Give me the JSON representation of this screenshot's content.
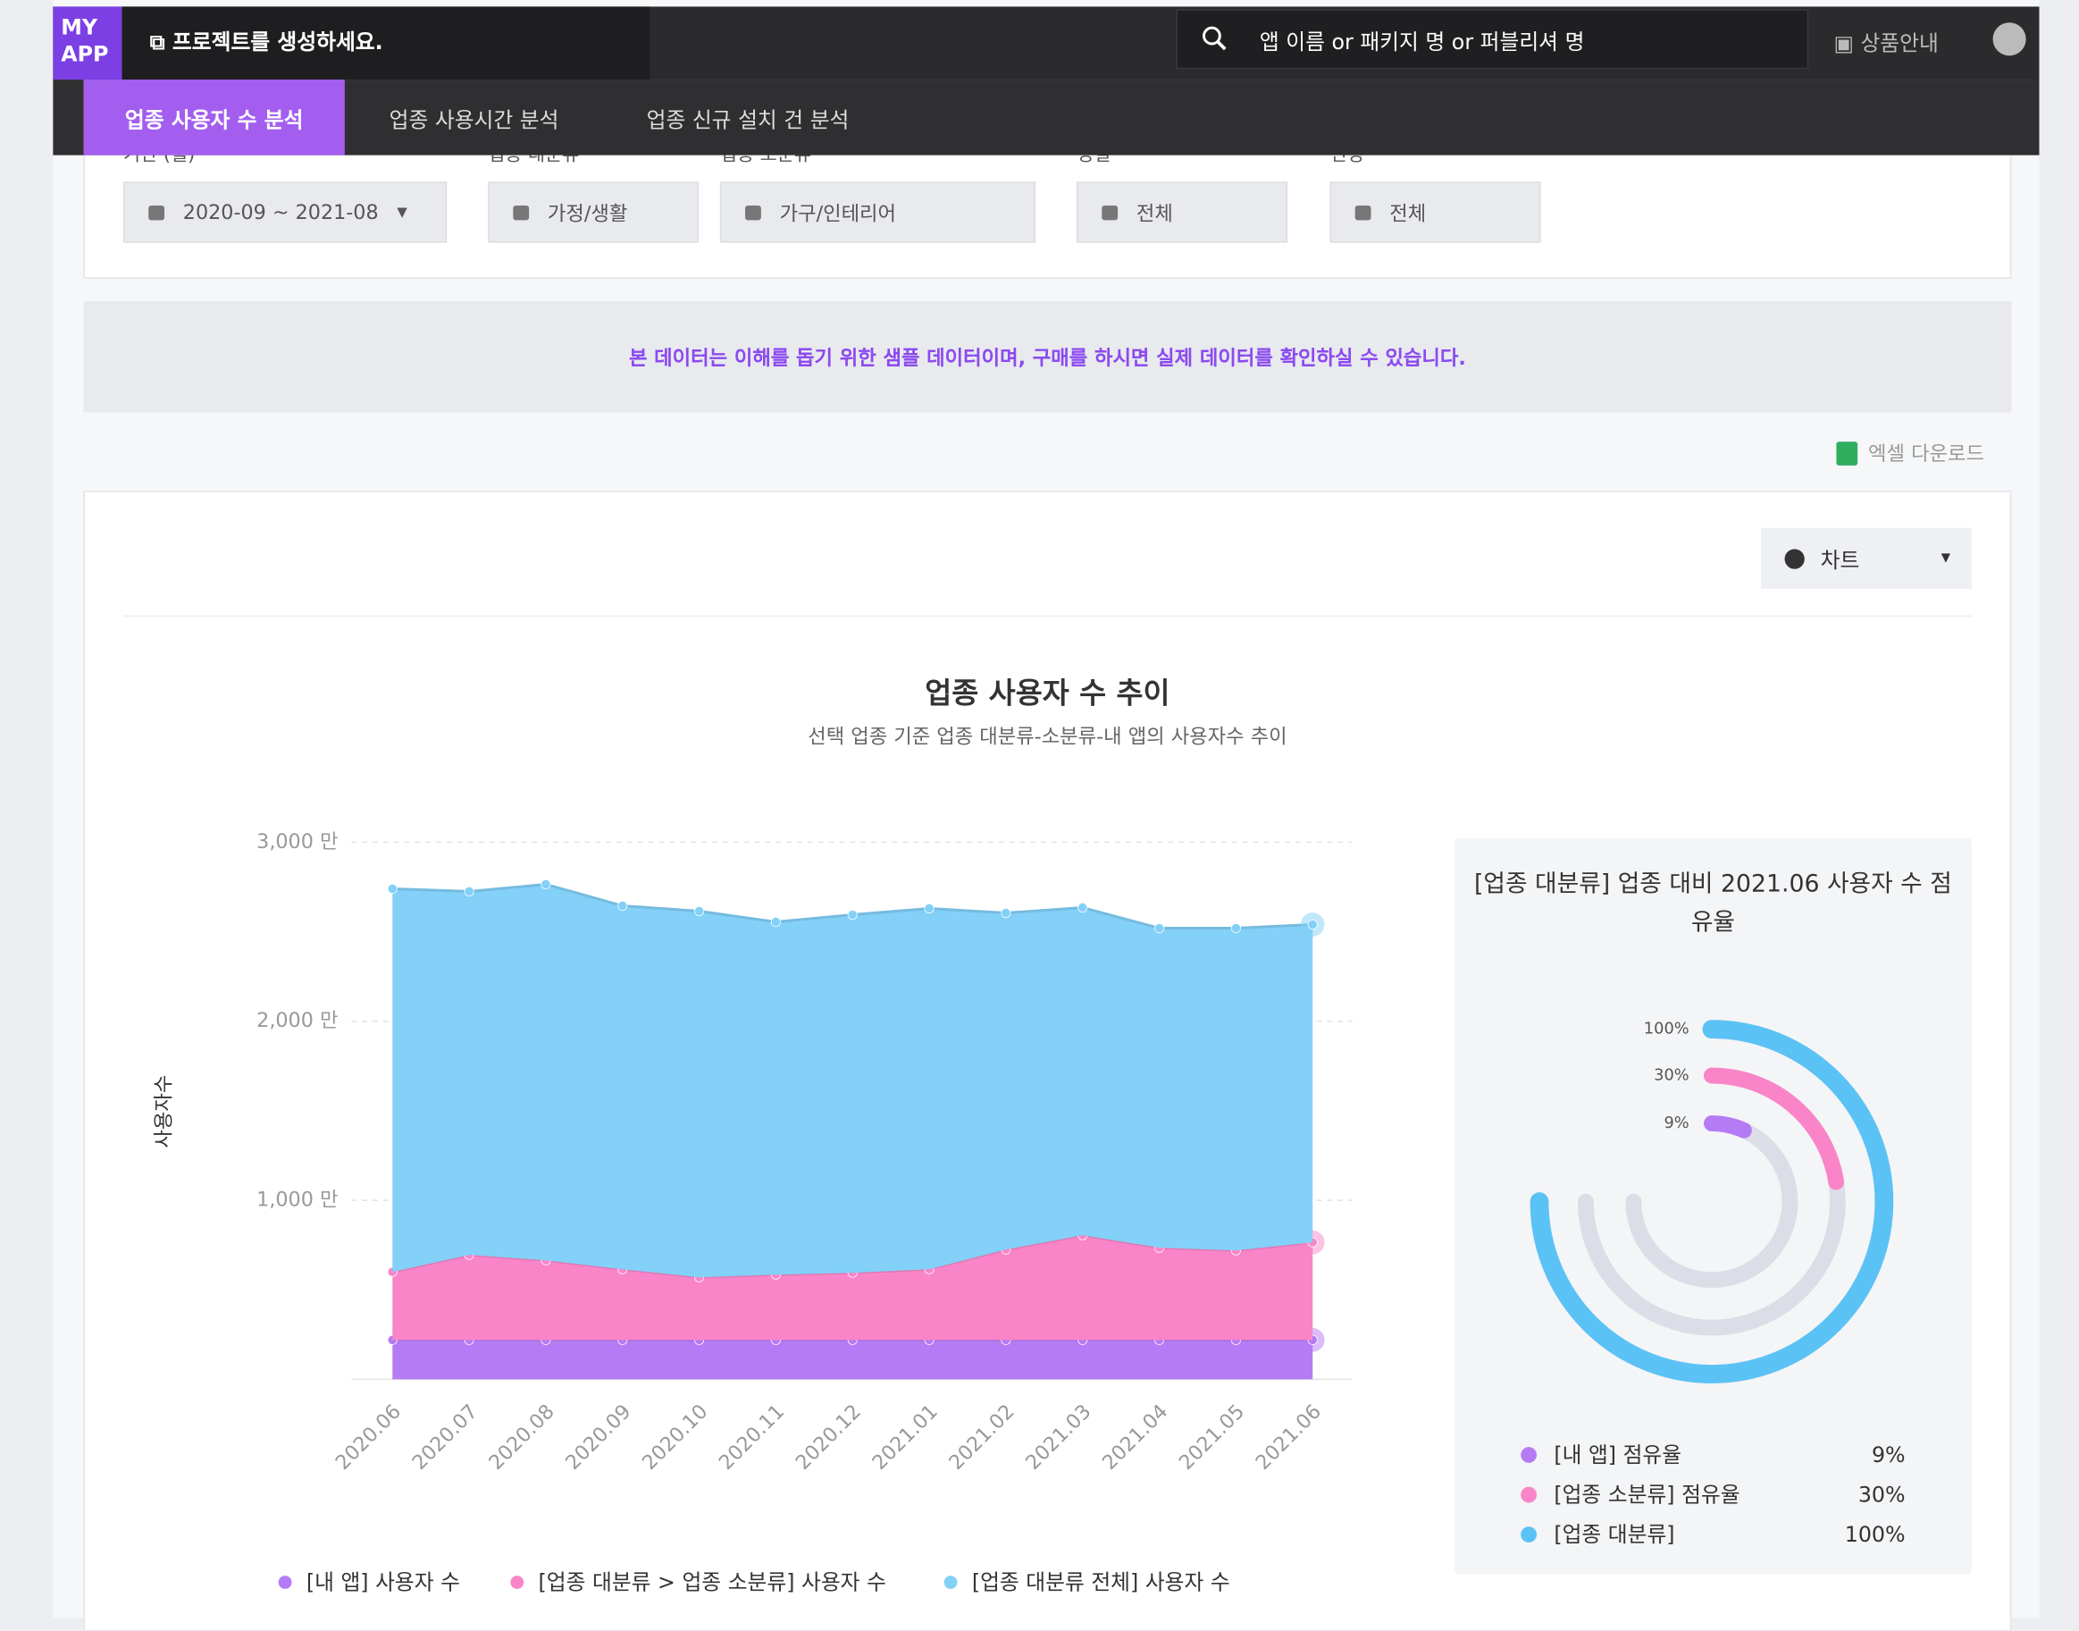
{
  "header": {
    "logo": [
      "MY",
      "APP"
    ],
    "project": "프로젝트를 생성하세요.",
    "search_placeholder": "앱 이름 or 패키지 명 or 퍼블리셔 명",
    "product_info": "상품안내"
  },
  "tabs": [
    "업종 사용자 수 분석",
    "업종 사용시간 분석",
    "업종 신규 설치 건 분석"
  ],
  "filters": [
    {
      "label": "기간 (월)",
      "value": "2020-09 ~ 2021-08"
    },
    {
      "label": "업종 대분류",
      "value": "가정/생활"
    },
    {
      "label": "업종 소분류",
      "value": "가구/인테리어"
    },
    {
      "label": "성별",
      "value": "전체"
    },
    {
      "label": "연령",
      "value": "전체"
    }
  ],
  "notice": "본 데이터는 이해를 돕기 위한 샘플 데이터이며, 구매를 하시면 실제 데이터를 확인하실 수 있습니다.",
  "download": "엑셀 다운로드",
  "view_select": "차트",
  "chart_data": [
    {
      "type": "stacked_area",
      "title": "업종 사용자 수 추이",
      "subtitle": "선택 업종 기준 업종 대분류-소분류-내 앱의 사용자수 추이",
      "y_label": "사용자수",
      "categories": [
        "2020.06",
        "2020.07",
        "2020.08",
        "2020.09",
        "2020.10",
        "2020.11",
        "2020.12",
        "2021.01",
        "2021.02",
        "2021.03",
        "2021.04",
        "2021.05",
        "2021.06"
      ],
      "series": [
        {
          "name": "[내 앱] 사용자 수",
          "color": "#b57bf5",
          "values": [
            220,
            220,
            220,
            220,
            220,
            220,
            220,
            220,
            220,
            220,
            220,
            220,
            220
          ]
        },
        {
          "name": "[업종 대분류 > 업종 소분류] 사용자 수",
          "color": "#f985c8",
          "values": [
            380,
            475,
            445,
            395,
            350,
            365,
            375,
            395,
            505,
            585,
            515,
            500,
            545
          ]
        },
        {
          "name": "[업종 대분류 전체] 사용자 수",
          "color": "#83d0f8",
          "values": [
            2140,
            2030,
            2100,
            2030,
            2045,
            1970,
            2000,
            2015,
            1880,
            1830,
            1785,
            1800,
            1775
          ]
        }
      ],
      "ylim": [
        0,
        3000
      ],
      "yticks": [
        {
          "value": 1000,
          "label": "1,000 만"
        },
        {
          "value": 2000,
          "label": "2,000 만"
        },
        {
          "value": 3000,
          "label": "3,000 만"
        }
      ],
      "grid": true
    },
    {
      "type": "radial_bar",
      "title": "[업종 대분류] 업종 대비 2021.06 사용자 수 점유율",
      "categories": [
        "[내 앱] 점유율",
        "[업종 소분류] 점유율",
        "[업종 대분류]"
      ],
      "values": [
        9,
        30,
        100
      ],
      "value_labels": [
        "9%",
        "30%",
        "100%"
      ],
      "colors": [
        "#b57bf5",
        "#f985c8",
        "#5bc2f5"
      ],
      "track_color": "#dcdde6",
      "max": 100
    }
  ]
}
